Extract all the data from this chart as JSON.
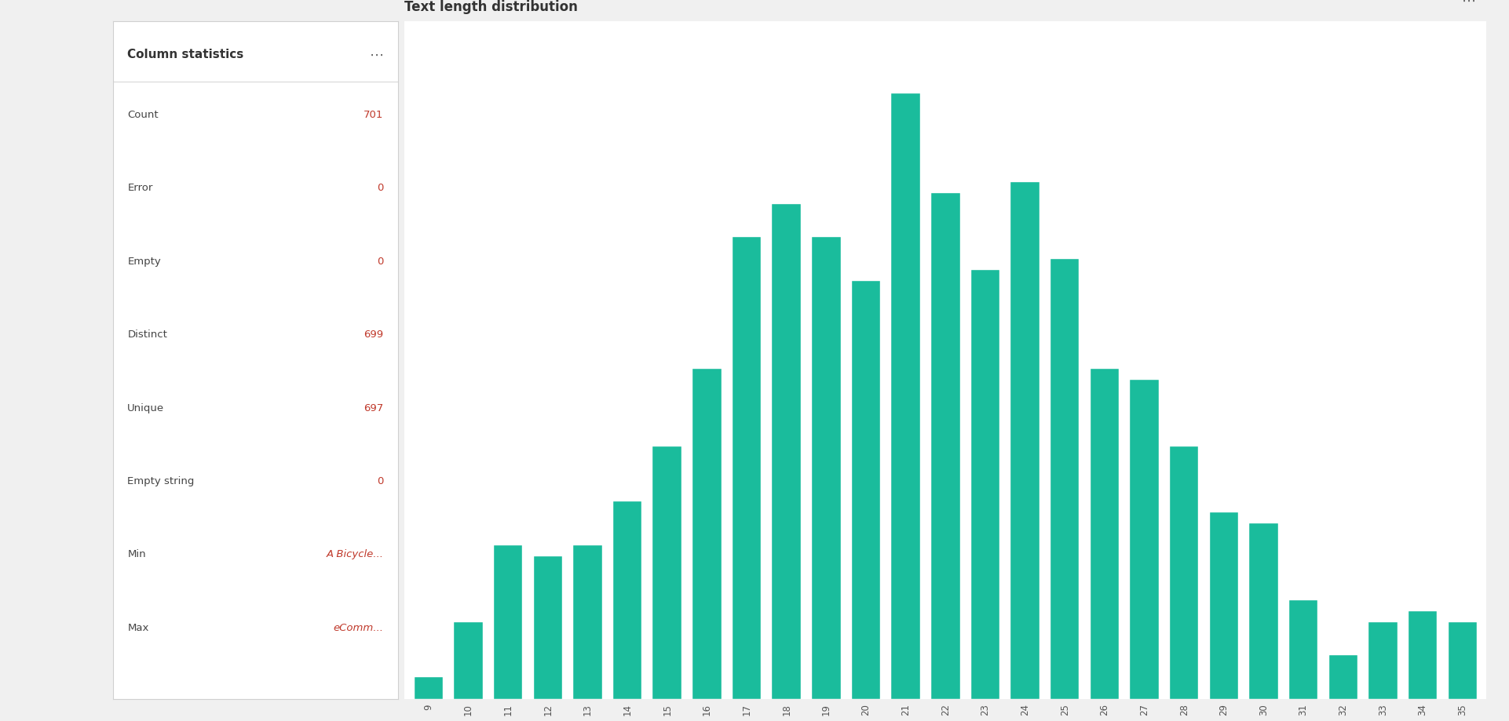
{
  "title": "Text length distribution",
  "bar_color": "#1ABC9C",
  "background_color": "#F5F5F5",
  "x_labels": [
    9,
    10,
    11,
    12,
    13,
    14,
    15,
    16,
    17,
    18,
    19,
    20,
    21,
    22,
    23,
    24,
    25,
    26,
    27,
    28,
    29,
    30,
    31,
    32,
    33,
    34,
    35
  ],
  "values": [
    2,
    7,
    14,
    13,
    14,
    18,
    23,
    30,
    42,
    45,
    42,
    38,
    55,
    46,
    39,
    47,
    40,
    30,
    29,
    23,
    17,
    16,
    9,
    4,
    7,
    8,
    7
  ],
  "title_fontsize": 12,
  "tick_fontsize": 8.5,
  "col_stats_title": "Column statistics",
  "stats_labels": [
    "Count",
    "Error",
    "Empty",
    "Distinct",
    "Unique",
    "Empty string",
    "Min",
    "Max"
  ],
  "stats_values": [
    "701",
    "0",
    "0",
    "699",
    "697",
    "0",
    "A Bicycle...",
    "eComm..."
  ]
}
